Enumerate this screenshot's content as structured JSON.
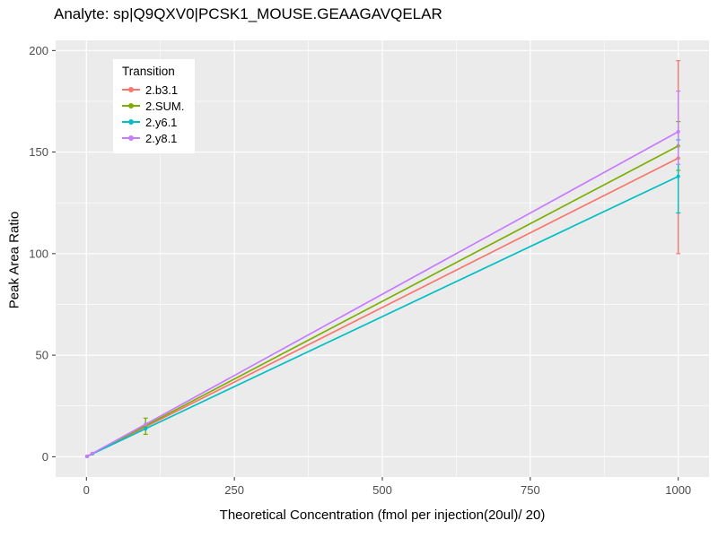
{
  "chart_data": {
    "type": "line",
    "title": "Analyte: sp|Q9QXV0|PCSK1_MOUSE.GEAAGAVQELAR",
    "xlabel": "Theoretical Concentration (fmol per injection(20ul)/ 20)",
    "ylabel": "Peak Area Ratio",
    "legend_title": "Transition",
    "legend_position": "top-left-inside",
    "grid": true,
    "panel_bg": "#EBEBEB",
    "grid_color": "#FFFFFF",
    "tick_label_color": "#4D4D4D",
    "xlim": [
      -52,
      1052
    ],
    "ylim": [
      -10,
      205
    ],
    "x_ticks": [
      0,
      250,
      500,
      750,
      1000
    ],
    "y_ticks": [
      0,
      50,
      100,
      150,
      200
    ],
    "series": [
      {
        "name": "2.b3.1",
        "color": "#F8766D",
        "x": [
          1,
          10,
          100,
          1000
        ],
        "y": [
          0.15,
          1.5,
          14.7,
          147
        ],
        "error_bars": [
          {
            "x": 1000,
            "ymin": 100,
            "ymax": 195
          }
        ]
      },
      {
        "name": "2.SUM.",
        "color": "#7CAE00",
        "x": [
          1,
          10,
          100,
          1000
        ],
        "y": [
          0.15,
          1.5,
          15.3,
          153
        ],
        "error_bars": [
          {
            "x": 100,
            "ymin": 11,
            "ymax": 19
          },
          {
            "x": 1000,
            "ymin": 141,
            "ymax": 165
          }
        ]
      },
      {
        "name": "2.y6.1",
        "color": "#00BFC4",
        "x": [
          1,
          10,
          100,
          1000
        ],
        "y": [
          0.14,
          1.4,
          13.8,
          138
        ],
        "error_bars": [
          {
            "x": 1000,
            "ymin": 120,
            "ymax": 156
          }
        ]
      },
      {
        "name": "2.y8.1",
        "color": "#C77CFF",
        "x": [
          1,
          10,
          100,
          1000
        ],
        "y": [
          0.16,
          1.6,
          16.0,
          160
        ],
        "error_bars": [
          {
            "x": 1000,
            "ymin": 144,
            "ymax": 180
          }
        ]
      }
    ]
  }
}
